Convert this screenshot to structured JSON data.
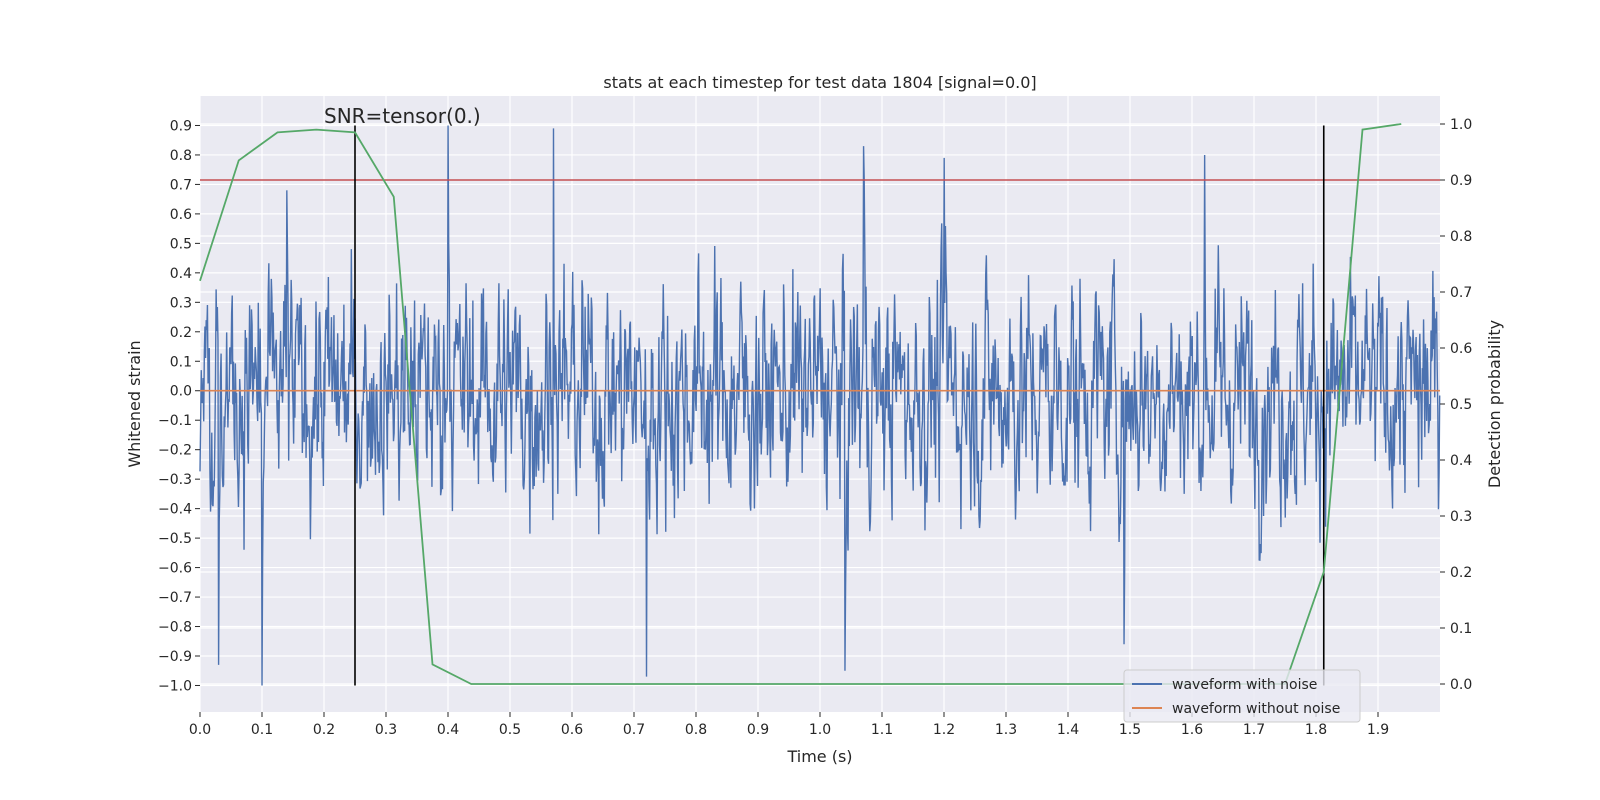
{
  "chart_data": {
    "type": "line",
    "title": "stats at each timestep for test data 1804 [signal=0.0]",
    "xlabel": "Time (s)",
    "ylabel": "Whitened strain",
    "y2label": "Detection probability",
    "xlim": [
      0.0,
      2.0
    ],
    "ylim": [
      -1.09,
      1.0
    ],
    "y2lim": [
      -0.05,
      1.05
    ],
    "x_ticks": [
      "0.0",
      "0.1",
      "0.2",
      "0.3",
      "0.4",
      "0.5",
      "0.6",
      "0.7",
      "0.8",
      "0.9",
      "1.0",
      "1.1",
      "1.2",
      "1.3",
      "1.4",
      "1.5",
      "1.6",
      "1.7",
      "1.8",
      "1.9"
    ],
    "y_ticks": [
      "0.9",
      "0.8",
      "0.7",
      "0.6",
      "0.5",
      "0.4",
      "0.3",
      "0.2",
      "0.1",
      "0.0",
      "−0.1",
      "−0.2",
      "−0.3",
      "−0.4",
      "−0.5",
      "−0.6",
      "−0.7",
      "−0.8",
      "−0.9",
      "−1.0"
    ],
    "y2_ticks": [
      "1.0",
      "0.9",
      "0.8",
      "0.7",
      "0.6",
      "0.5",
      "0.4",
      "0.3",
      "0.2",
      "0.1",
      "0.0"
    ],
    "grid": true,
    "legend_position": "bottom-right",
    "annotation": "SNR=tensor(0.)",
    "series": [
      {
        "name": "waveform with noise",
        "color": "#4c72b0",
        "axis": "left",
        "description_points": "noisy strain, roughly between -0.7 and 0.7 with spikes",
        "spikes": [
          {
            "x": 0.03,
            "y": -0.93
          },
          {
            "x": 0.1,
            "y": -1.0
          },
          {
            "x": 0.14,
            "y": 0.68
          },
          {
            "x": 0.4,
            "y": 0.9
          },
          {
            "x": 0.57,
            "y": 0.89
          },
          {
            "x": 0.72,
            "y": -0.97
          },
          {
            "x": 1.07,
            "y": 0.83
          },
          {
            "x": 1.04,
            "y": -0.95
          },
          {
            "x": 1.2,
            "y": 0.79
          },
          {
            "x": 1.49,
            "y": -0.86
          },
          {
            "x": 1.62,
            "y": 0.8
          }
        ]
      },
      {
        "name": "waveform without noise",
        "color": "#dd8452",
        "axis": "left",
        "x": [
          0.0,
          2.0
        ],
        "y": [
          0.0,
          0.0
        ]
      },
      {
        "name": "",
        "color": "#55a868",
        "axis": "right",
        "x": [
          0.0,
          0.0625,
          0.125,
          0.1875,
          0.25,
          0.3125,
          0.375,
          0.4375,
          0.5,
          1.75,
          1.8125,
          1.875,
          1.9375
        ],
        "y": [
          0.72,
          0.935,
          0.985,
          0.99,
          0.985,
          0.87,
          0.035,
          0.0,
          0.0,
          0.0,
          0.2,
          0.99,
          1.0
        ]
      }
    ],
    "threshold_line": {
      "color": "#c44e52",
      "y2": 0.9
    },
    "vertical_markers": [
      {
        "x": 0.25,
        "y_from": -1.0,
        "y_to": 0.9,
        "color": "#000000"
      },
      {
        "x": 1.8125,
        "y_from": -1.0,
        "y_to": 0.9,
        "color": "#000000"
      }
    ]
  }
}
